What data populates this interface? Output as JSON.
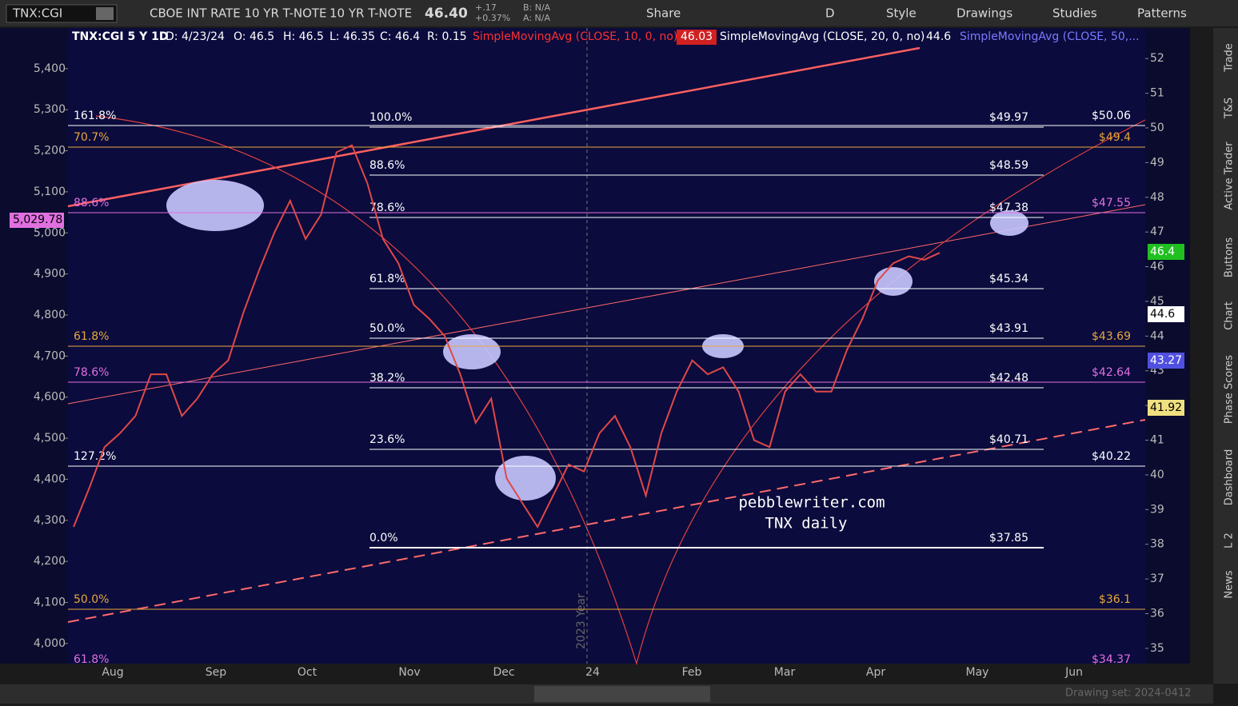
{
  "toolbar": {
    "symbol": "TNX:CGI",
    "description": "CBOE INT RATE 10 YR T-NOTE",
    "short_name": "10 YR T-NOTE",
    "last": "46.40",
    "change": "+.17",
    "change_pct": "+0.37%",
    "bid": "B: N/A",
    "ask": "A: N/A",
    "buttons": [
      "Share",
      "D",
      "Style",
      "Drawings",
      "Studies",
      "Patterns"
    ]
  },
  "header": {
    "symbol": "TNX:CGI 5 Y 1D",
    "date": "D: 4/23/24",
    "open": "O: 46.5",
    "high": "H: 46.5",
    "low": "L: 46.35",
    "close": "C: 46.4",
    "range": "R: 0.15",
    "sma10": "SimpleMovingAvg (CLOSE, 10, 0, no)",
    "sma10_value": "46.03",
    "sma20": "SimpleMovingAvg (CLOSE, 20, 0, no)",
    "sma20_value": "44.6",
    "sma50": "SimpleMovingAvg (CLOSE, 50,..."
  },
  "chart": {
    "type": "line",
    "closes": [
      38.5,
      39.6,
      40.8,
      41.2,
      41.7,
      42.9,
      42.9,
      41.7,
      42.2,
      42.9,
      43.3,
      44.7,
      45.9,
      47.0,
      47.9,
      46.8,
      47.5,
      49.3,
      49.5,
      48.4,
      46.8,
      46.1,
      44.9,
      44.5,
      44.0,
      42.9,
      41.5,
      42.2,
      39.9,
      39.2,
      38.5,
      39.4,
      40.3,
      40.1,
      41.2,
      41.7,
      40.8,
      39.4,
      41.2,
      42.4,
      43.3,
      42.9,
      43.1,
      42.4,
      41.0,
      40.8,
      42.4,
      42.9,
      42.4,
      42.4,
      43.6,
      44.5,
      45.6,
      46.1,
      46.3,
      46.2,
      46.4
    ],
    "color": "#e04848",
    "ylim": [
      34.56,
      52.88
    ],
    "yticks": [
      35,
      36,
      37,
      38,
      39,
      40,
      41,
      42,
      43,
      44,
      45,
      46,
      47,
      48,
      49,
      50,
      51,
      52
    ],
    "left_ylim": [
      3951,
      5499
    ],
    "left_yticks": [
      {
        "value": 4000,
        "label": "4,000"
      },
      {
        "value": 4100,
        "label": "4,100"
      },
      {
        "value": 4200,
        "label": "4,200"
      },
      {
        "value": 4300,
        "label": "4,300"
      },
      {
        "value": 4400,
        "label": "4,400"
      },
      {
        "value": 4500,
        "label": "4,500"
      },
      {
        "value": 4600,
        "label": "4,600"
      },
      {
        "value": 4700,
        "label": "4,700"
      },
      {
        "value": 4800,
        "label": "4,800"
      },
      {
        "value": 4900,
        "label": "4,900"
      },
      {
        "value": 5000,
        "label": "5,000"
      },
      {
        "value": 5100,
        "label": "5,100"
      },
      {
        "value": 5200,
        "label": "5,200"
      },
      {
        "value": 5300,
        "label": "5,300"
      },
      {
        "value": 5400,
        "label": "5,400"
      }
    ],
    "x_labels": [
      "Aug",
      "Sep",
      "Oct",
      "Nov",
      "Dec",
      "24",
      "Feb",
      "Mar",
      "Apr",
      "May",
      "Jun"
    ],
    "year_marker": "2023 Year",
    "fib_outer": [
      {
        "pct": "161.8%",
        "price": "$50.06"
      },
      {
        "pct": "70.7%",
        "price": "$49.4"
      },
      {
        "pct": "88.6%",
        "price": "$47.55"
      },
      {
        "pct": "61.8%",
        "price": "$43.69"
      },
      {
        "pct": "78.6%",
        "price": "$42.64"
      },
      {
        "pct": "127.2%",
        "price": "$40.22"
      },
      {
        "pct": "50.0%",
        "price": "$36.1"
      },
      {
        "pct": "61.8%",
        "price": "$34.37"
      }
    ],
    "fib_inner": [
      {
        "pct": "100.0%",
        "price": "$49.97"
      },
      {
        "pct": "88.6%",
        "price": "$48.59"
      },
      {
        "pct": "78.6%",
        "price": "$47.38"
      },
      {
        "pct": "61.8%",
        "price": "$45.34"
      },
      {
        "pct": "50.0%",
        "price": "$43.91"
      },
      {
        "pct": "38.2%",
        "price": "$42.48"
      },
      {
        "pct": "23.6%",
        "price": "$40.71"
      },
      {
        "pct": "0.0%",
        "price": "$37.85"
      }
    ],
    "left_badge": "5,029.78",
    "right_badges": [
      "46.4",
      "44.6",
      "43.27",
      "41.92"
    ],
    "watermark": [
      "pebblewriter.com",
      "TNX daily"
    ],
    "drawing_set": "Drawing set: 2024-0412"
  },
  "side_tabs": [
    "Trade",
    "T&S",
    "Active Trader",
    "Buttons",
    "Chart",
    "Phase Scores",
    "Dashboard",
    "L 2",
    "News"
  ]
}
